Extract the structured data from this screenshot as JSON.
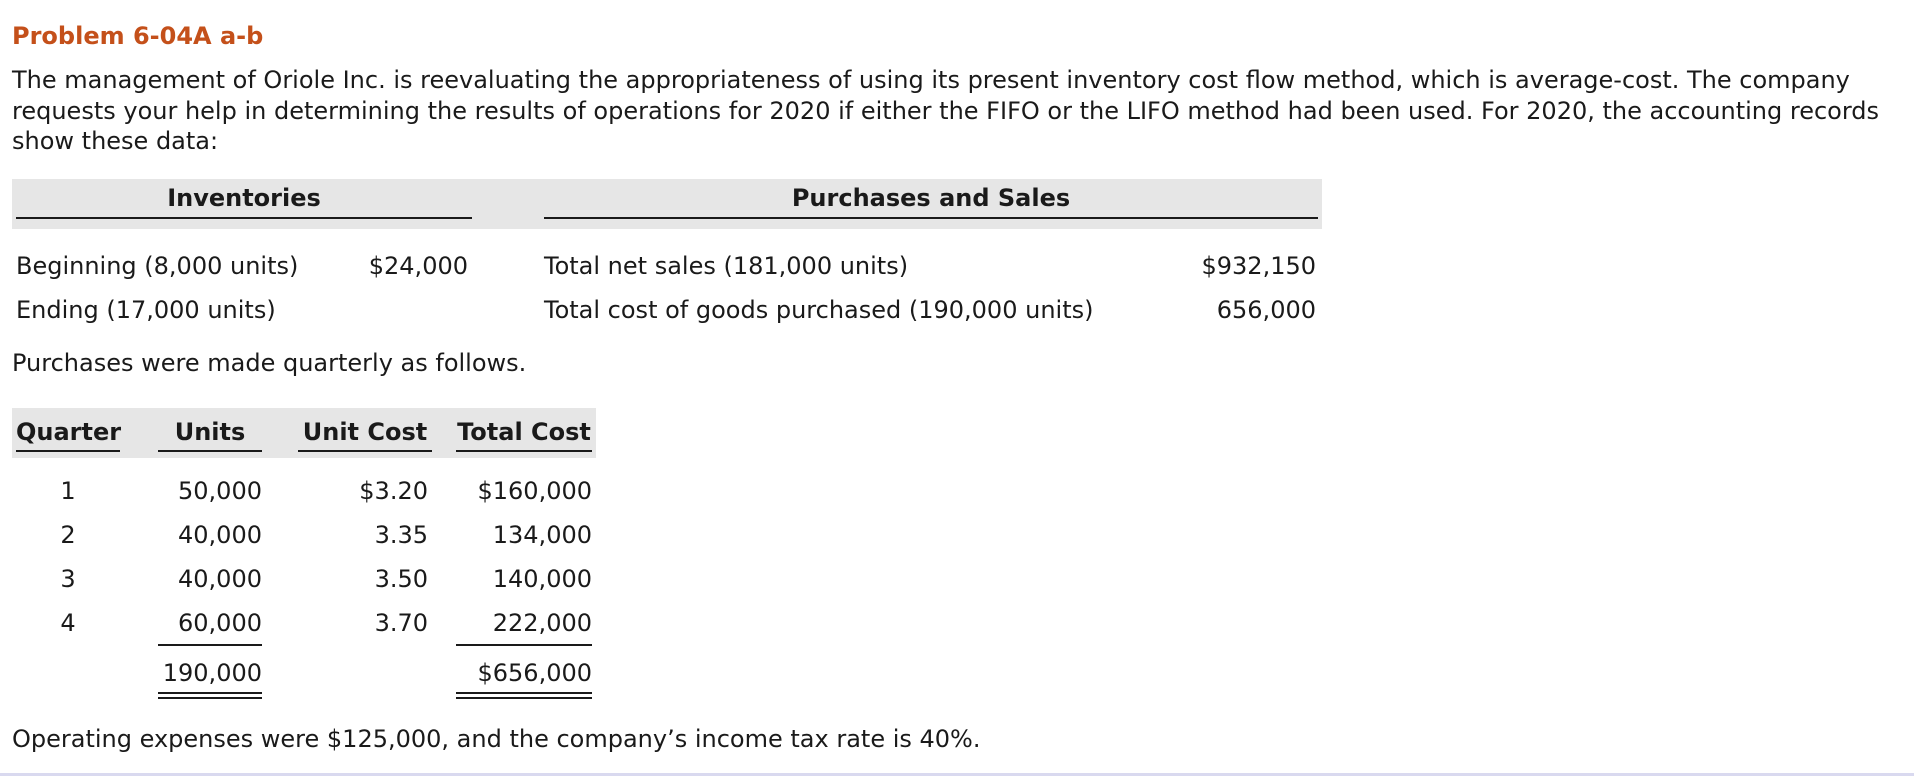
{
  "title": "Problem 6-04A a-b",
  "intro": "The management of Oriole Inc. is reevaluating the appropriateness of using its present inventory cost flow method, which is average-cost. The company requests your help in determining the results of operations for 2020 if either the FIFO or the LIFO method had been used. For 2020, the accounting records show these data:",
  "inventories": {
    "header": "Inventories",
    "rows": [
      {
        "label": "Beginning (8,000 units)",
        "value": "$24,000"
      },
      {
        "label": "Ending (17,000 units)",
        "value": ""
      }
    ]
  },
  "purchases_sales": {
    "header": "Purchases and Sales",
    "rows": [
      {
        "label": "Total net sales (181,000 units)",
        "value": "$932,150"
      },
      {
        "label": "Total cost of goods purchased (190,000 units)",
        "value": "656,000"
      }
    ]
  },
  "quarterly_intro": "Purchases were made quarterly as follows.",
  "quarterly": {
    "headers": {
      "quarter": "Quarter",
      "units": "Units",
      "unit_cost": "Unit Cost",
      "total_cost": "Total Cost"
    },
    "rows": [
      {
        "quarter": "1",
        "units": "50,000",
        "unit_cost": "$3.20",
        "total_cost": "$160,000"
      },
      {
        "quarter": "2",
        "units": "40,000",
        "unit_cost": "3.35",
        "total_cost": "134,000"
      },
      {
        "quarter": "3",
        "units": "40,000",
        "unit_cost": "3.50",
        "total_cost": "140,000"
      },
      {
        "quarter": "4",
        "units": "60,000",
        "unit_cost": "3.70",
        "total_cost": "222,000"
      }
    ],
    "totals": {
      "units": "190,000",
      "total_cost": "$656,000"
    }
  },
  "footer": "Operating expenses were $125,000, and the company’s income tax rate is 40%."
}
